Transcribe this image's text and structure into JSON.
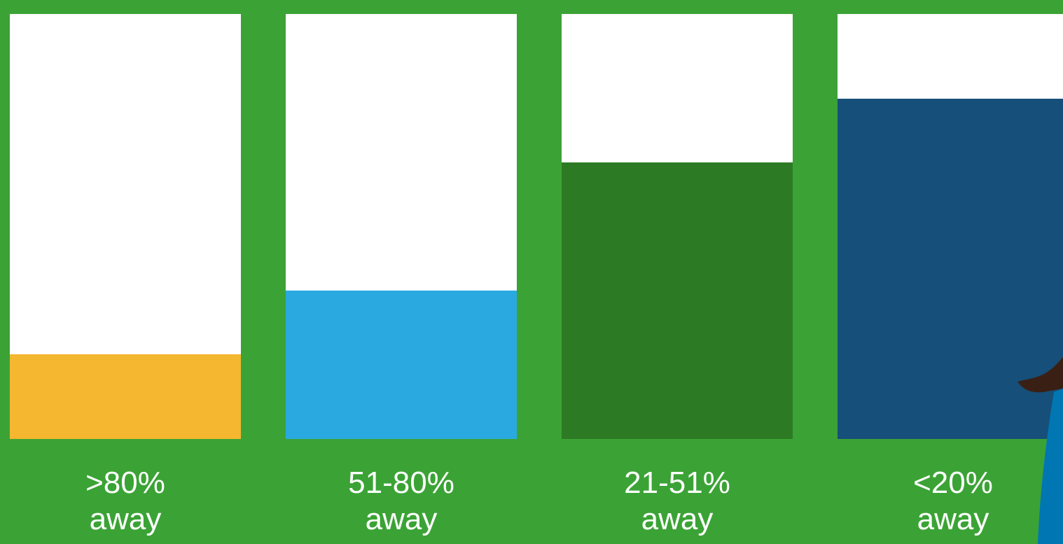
{
  "chart_data": {
    "type": "bar",
    "categories": [
      ">80%\naway",
      "51-80%\naway",
      "21-51%\naway",
      "<20%\naway"
    ],
    "values": [
      20,
      35,
      65,
      80
    ],
    "colors": [
      "#f4b72f",
      "#2aa9e0",
      "#2d7a24",
      "#164f7a"
    ],
    "ylim": [
      0,
      100
    ]
  }
}
